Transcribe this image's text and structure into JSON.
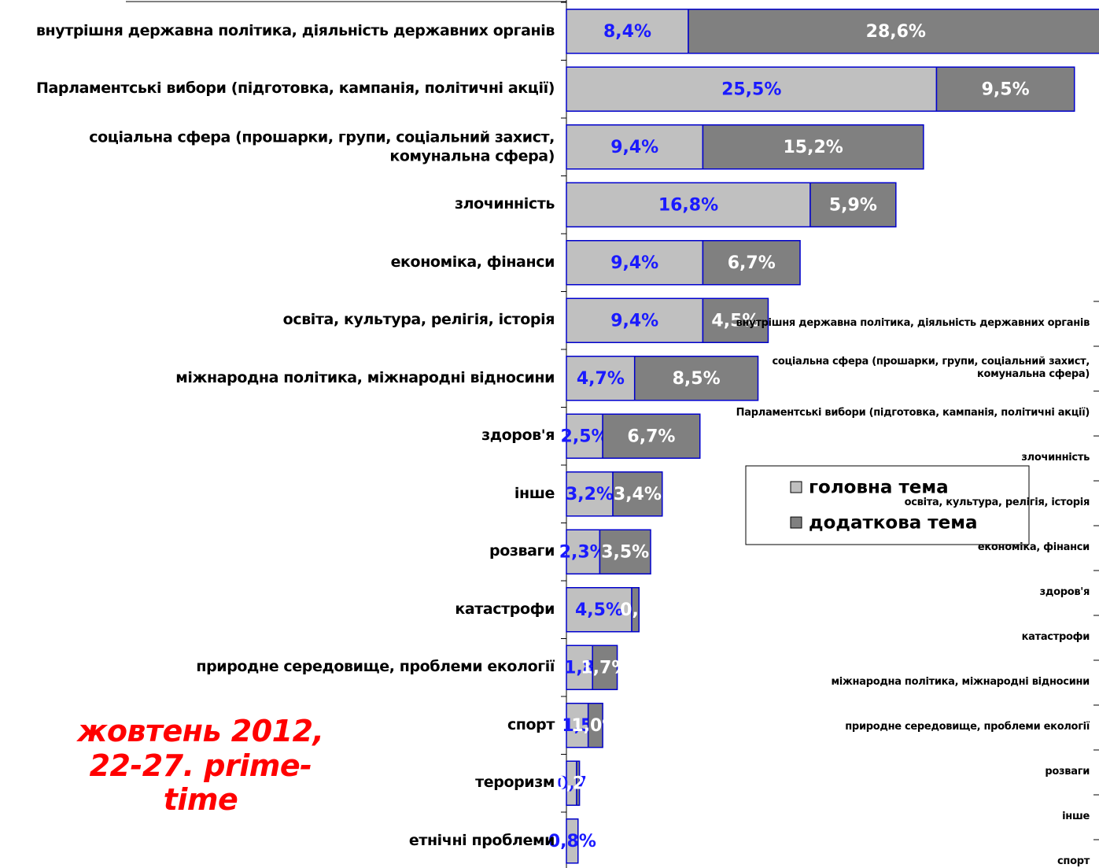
{
  "chart_data": [
    {
      "type": "bar",
      "orientation": "horizontal",
      "stacked": true,
      "categories": [
        "внутрішня державна політика, діяльність державних органів",
        "Парламентські вибори (підготовка, кампанія, політичні акції)",
        "соціальна сфера (прошарки, групи, соціальний захист,\nкомунальна сфера)",
        "злочинність",
        "економіка, фінанси",
        "освіта, культура, релігія, історія",
        "міжнародна політика, міжнародні відносини",
        "здоров'я",
        "інше",
        "розваги",
        "катастрофи",
        "природне середовище, проблеми екології",
        "спорт",
        "тероризм",
        "етнічні проблеми"
      ],
      "series": [
        {
          "name": "головна тема",
          "color": "#c0c0c0",
          "values": [
            8.4,
            25.5,
            9.4,
            16.8,
            9.4,
            9.4,
            4.7,
            2.5,
            3.2,
            2.3,
            4.5,
            1.8,
            1.5,
            0.7,
            0.8
          ],
          "value_labels": [
            "8,4%",
            "25,5%",
            "9,4%",
            "16,8%",
            "9,4%",
            "9,4%",
            "4,7%",
            "2,5%",
            "3,2%",
            "2,3%",
            "4,5%",
            "1,8",
            "1,5",
            "0,7",
            "0,8%"
          ]
        },
        {
          "name": "додаткова тема",
          "color": "#808080",
          "values": [
            28.6,
            9.5,
            15.2,
            5.9,
            6.7,
            4.5,
            8.5,
            6.7,
            3.4,
            3.5,
            0.5,
            1.7,
            1.0,
            0.2,
            null
          ],
          "value_labels": [
            "28,6%",
            "9,5%",
            "15,2%",
            "5,9%",
            "6,7%",
            "4,5%",
            "8,5%",
            "6,7%",
            "3,4%",
            "3,5%",
            "0,5",
            "1,7%",
            "1,0%",
            "0,2%",
            null
          ]
        }
      ],
      "annotation": "жовтень 2012,\n22-27. prime-\ntime"
    },
    {
      "type": "bar",
      "orientation": "horizontal",
      "categories": [
        "внутрішня державна політика, діяльність державних органів",
        "соціальна сфера (прошарки, групи, соціальний захист,\nкомунальна сфера)",
        "Парламентські вибори (підготовка, кампанія, політичні акції)",
        "злочинність",
        "освіта, культура, релігія, історія",
        "економіка, фінанси",
        "здоров'я",
        "катастрофи",
        "міжнародна політика, міжнародні відносини",
        "природне середовище, проблеми екології",
        "розваги",
        "інше",
        "спорт"
      ]
    }
  ]
}
